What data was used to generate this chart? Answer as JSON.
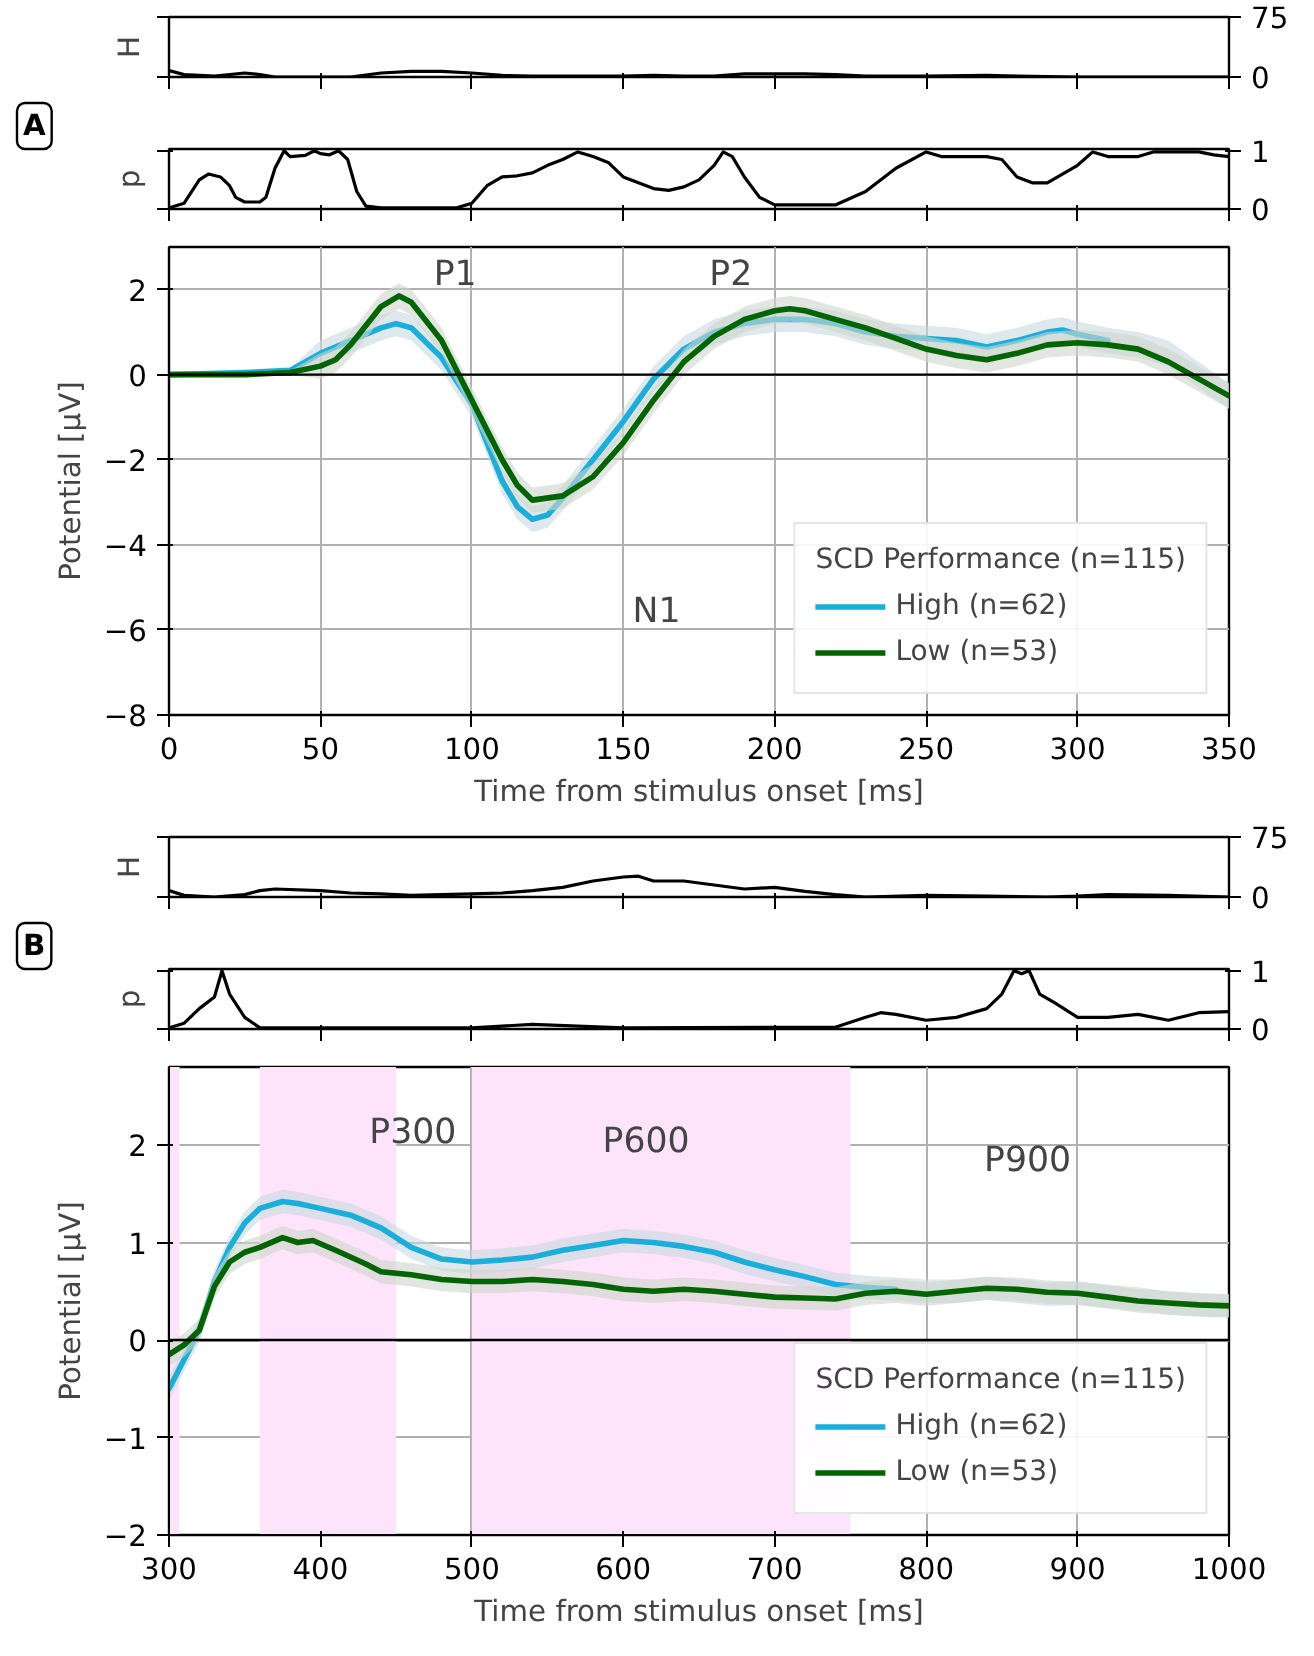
{
  "chart_data": [
    {
      "type": "line",
      "ylabel": "H",
      "xlim": [
        0,
        350
      ],
      "xticks": [
        0,
        50,
        100,
        150,
        200,
        250,
        300,
        350
      ],
      "ylim": [
        0,
        75
      ],
      "yticks": [
        0,
        75
      ],
      "tick_labels": "y",
      "grid": false,
      "series": [
        {
          "color": "#000000",
          "x": [
            0,
            5,
            15,
            25,
            30,
            35,
            60,
            70,
            80,
            90,
            100,
            110,
            120,
            150,
            160,
            170,
            180,
            190,
            200,
            210,
            220,
            230,
            250,
            270,
            280,
            300,
            350
          ],
          "values": [
            8,
            3,
            1,
            5,
            3,
            0,
            0,
            5,
            7,
            7,
            5,
            2,
            1,
            1,
            2,
            1,
            1,
            4,
            4,
            4,
            3,
            1,
            1,
            2,
            1,
            0,
            0
          ]
        }
      ]
    },
    {
      "type": "line",
      "ylabel": "p",
      "xlim": [
        0,
        350
      ],
      "xticks": [
        0,
        50,
        100,
        150,
        200,
        250,
        300,
        350
      ],
      "ylim": [
        0,
        1.03
      ],
      "yticks": [
        0,
        1
      ],
      "tick_labels": "y",
      "grid": false,
      "annotations": [
        "A"
      ],
      "series": [
        {
          "color": "#000000",
          "x": [
            0,
            5,
            10,
            13,
            17,
            20,
            22,
            25,
            30,
            32,
            35,
            38,
            40,
            45,
            48,
            50,
            53,
            56,
            59,
            62,
            65,
            70,
            95,
            100,
            105,
            110,
            115,
            120,
            125,
            130,
            135,
            140,
            145,
            150,
            160,
            165,
            170,
            175,
            180,
            183,
            186,
            190,
            195,
            200,
            220,
            230,
            240,
            250,
            255,
            270,
            275,
            280,
            285,
            290,
            300,
            305,
            310,
            320,
            325,
            340,
            345,
            350
          ],
          "values": [
            0.02,
            0.1,
            0.5,
            0.6,
            0.55,
            0.4,
            0.2,
            0.12,
            0.12,
            0.2,
            0.7,
            1.0,
            0.9,
            0.92,
            1.0,
            0.95,
            0.93,
            1.0,
            0.85,
            0.3,
            0.05,
            0.02,
            0.02,
            0.1,
            0.4,
            0.55,
            0.57,
            0.62,
            0.75,
            0.85,
            0.98,
            0.9,
            0.8,
            0.55,
            0.35,
            0.32,
            0.38,
            0.5,
            0.75,
            0.98,
            0.9,
            0.55,
            0.2,
            0.07,
            0.07,
            0.3,
            0.7,
            0.98,
            0.9,
            0.9,
            0.85,
            0.55,
            0.45,
            0.45,
            0.75,
            0.98,
            0.9,
            0.9,
            0.98,
            0.98,
            0.93,
            0.9
          ]
        }
      ]
    },
    {
      "type": "line",
      "xlabel": "Time from stimulus onset [ms]",
      "ylabel": "Potential [μV]",
      "xlim": [
        0,
        350
      ],
      "xticks": [
        0,
        50,
        100,
        150,
        200,
        250,
        300,
        350
      ],
      "ylim": [
        -8,
        3
      ],
      "yticks": [
        -8,
        -6,
        -4,
        -2,
        0,
        2
      ],
      "grid": true,
      "legend": "bottom right",
      "legend_title": "SCD Performance (n=115)",
      "ref_lines": [
        {
          "axis": "y",
          "value": 0,
          "color": "#000000"
        }
      ],
      "annotations": [
        "P1",
        "P2",
        "N1"
      ],
      "series": [
        {
          "name": "High (n=62)",
          "color": "#1aaedb",
          "x": [
            0,
            25,
            40,
            50,
            60,
            70,
            75,
            80,
            90,
            100,
            105,
            110,
            115,
            120,
            125,
            130,
            140,
            150,
            160,
            170,
            180,
            190,
            200,
            210,
            220,
            230,
            240,
            250,
            260,
            270,
            280,
            290,
            295,
            300,
            310,
            320,
            330,
            340,
            350
          ],
          "values": [
            0,
            0.05,
            0.1,
            0.5,
            0.8,
            1.1,
            1.2,
            1.1,
            0.4,
            -0.7,
            -1.6,
            -2.5,
            -3.1,
            -3.4,
            -3.3,
            -2.9,
            -2.0,
            -1.1,
            -0.1,
            0.6,
            1.0,
            1.2,
            1.3,
            1.3,
            1.2,
            1.0,
            0.9,
            0.85,
            0.8,
            0.65,
            0.8,
            1.0,
            1.05,
            0.95,
            0.8,
            null,
            null,
            null,
            null
          ],
          "lower": [
            -0.05,
            0,
            0.05,
            0.2,
            0.5,
            0.8,
            0.9,
            0.8,
            0.1,
            -1.0,
            -1.9,
            -2.8,
            -3.4,
            -3.7,
            -3.6,
            -3.2,
            -2.3,
            -1.4,
            -0.4,
            0.3,
            0.7,
            0.9,
            1.0,
            1.0,
            0.9,
            0.7,
            0.6,
            0.55,
            0.5,
            0.35,
            0.5,
            0.7,
            0.75,
            0.65,
            0.5,
            0.4,
            0.2,
            -0.3,
            -0.8
          ],
          "upper": [
            0.05,
            0.1,
            0.15,
            0.8,
            1.1,
            1.4,
            1.5,
            1.4,
            0.7,
            -0.4,
            -1.3,
            -2.2,
            -2.8,
            -3.1,
            -3.0,
            -2.6,
            -1.7,
            -0.8,
            0.2,
            0.9,
            1.3,
            1.5,
            1.6,
            1.6,
            1.5,
            1.3,
            1.2,
            1.15,
            1.1,
            0.95,
            1.1,
            1.3,
            1.35,
            1.25,
            1.1,
            1.0,
            0.8,
            0.3,
            -0.2
          ]
        },
        {
          "name": "Low (n=53)",
          "color": "#006400",
          "x": [
            0,
            25,
            40,
            50,
            55,
            60,
            70,
            76,
            80,
            90,
            100,
            110,
            115,
            120,
            130,
            140,
            150,
            160,
            170,
            180,
            190,
            200,
            205,
            210,
            220,
            230,
            240,
            250,
            260,
            270,
            280,
            290,
            300,
            310,
            320,
            330,
            340,
            350
          ],
          "values": [
            0,
            0,
            0.05,
            0.2,
            0.35,
            0.7,
            1.6,
            1.85,
            1.7,
            0.8,
            -0.6,
            -2.0,
            -2.6,
            -2.95,
            -2.85,
            -2.4,
            -1.6,
            -0.6,
            0.3,
            0.9,
            1.3,
            1.5,
            1.55,
            1.5,
            1.3,
            1.1,
            0.85,
            0.6,
            0.45,
            0.35,
            0.5,
            0.7,
            0.75,
            0.7,
            0.6,
            0.3,
            -0.1,
            -0.5
          ],
          "lower": [
            -0.05,
            -0.05,
            0,
            -0.1,
            0.05,
            0.4,
            1.3,
            1.55,
            1.4,
            0.5,
            -0.9,
            -2.3,
            -2.9,
            -3.25,
            -3.15,
            -2.7,
            -1.9,
            -0.9,
            0,
            0.6,
            1.0,
            1.2,
            1.25,
            1.2,
            1.0,
            0.8,
            0.55,
            0.3,
            0.15,
            0.05,
            0.2,
            0.4,
            0.45,
            0.4,
            0.3,
            0,
            -0.4,
            -0.8
          ],
          "upper": [
            0.05,
            0.05,
            0.1,
            0.5,
            0.65,
            1.0,
            1.9,
            2.15,
            2.0,
            1.1,
            -0.3,
            -1.7,
            -2.3,
            -2.65,
            -2.55,
            -2.1,
            -1.3,
            -0.3,
            0.6,
            1.2,
            1.6,
            1.8,
            1.85,
            1.8,
            1.6,
            1.4,
            1.15,
            0.9,
            0.75,
            0.65,
            0.8,
            1.0,
            1.05,
            1.0,
            0.9,
            0.6,
            0.2,
            -0.2
          ]
        }
      ]
    },
    {
      "type": "line",
      "ylabel": "H",
      "xlim": [
        300,
        1000
      ],
      "xticks": [
        300,
        400,
        500,
        600,
        700,
        800,
        900,
        1000
      ],
      "ylim": [
        0,
        75
      ],
      "yticks": [
        0,
        75
      ],
      "tick_labels": "y",
      "grid": false,
      "series": [
        {
          "color": "#000000",
          "x": [
            300,
            310,
            330,
            350,
            360,
            370,
            400,
            420,
            440,
            460,
            480,
            500,
            520,
            540,
            560,
            580,
            600,
            610,
            620,
            640,
            660,
            680,
            700,
            720,
            740,
            760,
            800,
            840,
            880,
            900,
            920,
            960,
            1000
          ],
          "values": [
            8,
            2,
            0,
            3,
            8,
            10,
            8,
            5,
            4,
            2,
            3,
            4,
            5,
            8,
            12,
            20,
            25,
            26,
            20,
            20,
            15,
            10,
            12,
            7,
            3,
            0,
            2,
            1,
            0,
            1,
            3,
            2,
            0
          ]
        }
      ]
    },
    {
      "type": "line",
      "ylabel": "p",
      "xlim": [
        300,
        1000
      ],
      "xticks": [
        300,
        400,
        500,
        600,
        700,
        800,
        900,
        1000
      ],
      "ylim": [
        0,
        1.03
      ],
      "yticks": [
        0,
        1
      ],
      "tick_labels": "y",
      "grid": false,
      "annotations": [
        "B"
      ],
      "series": [
        {
          "color": "#000000",
          "x": [
            300,
            310,
            320,
            330,
            335,
            340,
            350,
            360,
            500,
            520,
            540,
            600,
            740,
            760,
            770,
            780,
            800,
            820,
            840,
            850,
            858,
            863,
            868,
            875,
            885,
            900,
            920,
            940,
            960,
            980,
            1000
          ],
          "values": [
            0.02,
            0.1,
            0.35,
            0.55,
            1.0,
            0.6,
            0.2,
            0.02,
            0.02,
            0.05,
            0.08,
            0.02,
            0.03,
            0.2,
            0.28,
            0.25,
            0.15,
            0.2,
            0.35,
            0.6,
            1.0,
            0.95,
            1.0,
            0.6,
            0.45,
            0.2,
            0.2,
            0.25,
            0.15,
            0.28,
            0.3
          ]
        }
      ]
    },
    {
      "type": "line",
      "xlabel": "Time from stimulus onset [ms]",
      "ylabel": "Potential [μV]",
      "xlim": [
        300,
        1000
      ],
      "xticks": [
        300,
        400,
        500,
        600,
        700,
        800,
        900,
        1000
      ],
      "ylim": [
        -2,
        2.8
      ],
      "yticks": [
        -2,
        -1,
        0,
        1,
        2
      ],
      "grid": true,
      "legend": "bottom right",
      "legend_title": "SCD Performance (n=115)",
      "ref_lines": [
        {
          "axis": "y",
          "value": 0,
          "color": "#000000"
        }
      ],
      "bands": [
        {
          "axis": "x",
          "from": 300,
          "to": 307,
          "color": "#fde4fa"
        },
        {
          "axis": "x",
          "from": 360,
          "to": 450,
          "color": "#fde4fa"
        },
        {
          "axis": "x",
          "from": 500,
          "to": 750,
          "color": "#fde4fa"
        }
      ],
      "annotations": [
        "P300",
        "P600",
        "P900"
      ],
      "series": [
        {
          "name": "High (n=62)",
          "color": "#1aaedb",
          "x": [
            300,
            310,
            320,
            330,
            340,
            350,
            360,
            375,
            385,
            400,
            420,
            440,
            460,
            480,
            500,
            520,
            540,
            560,
            580,
            600,
            620,
            640,
            660,
            680,
            700,
            720,
            740,
            760,
            780,
            800,
            820,
            840,
            860,
            880,
            900,
            920,
            940,
            960,
            980,
            1000
          ],
          "values": [
            -0.5,
            -0.2,
            0.1,
            0.6,
            0.95,
            1.2,
            1.35,
            1.42,
            1.4,
            1.35,
            1.28,
            1.15,
            0.95,
            0.83,
            0.8,
            0.82,
            0.85,
            0.92,
            0.97,
            1.02,
            1.0,
            0.96,
            0.9,
            0.8,
            0.72,
            0.65,
            0.57,
            0.54,
            0.52,
            null,
            null,
            null,
            null,
            null,
            null,
            null,
            null,
            null,
            null,
            null
          ],
          "lower": [
            -0.62,
            -0.32,
            -0.02,
            0.48,
            0.83,
            1.08,
            1.23,
            1.3,
            1.28,
            1.23,
            1.16,
            1.03,
            0.83,
            0.71,
            0.68,
            0.7,
            0.73,
            0.8,
            0.85,
            0.9,
            0.88,
            0.84,
            0.78,
            0.68,
            0.6,
            0.53,
            0.45,
            0.42,
            0.4,
            0.38,
            0.38,
            0.41,
            0.38,
            0.35,
            0.36,
            0.33,
            0.3,
            0.26,
            0.24,
            0.23
          ],
          "upper": [
            -0.38,
            -0.08,
            0.22,
            0.72,
            1.07,
            1.32,
            1.47,
            1.54,
            1.52,
            1.47,
            1.4,
            1.27,
            1.07,
            0.95,
            0.92,
            0.94,
            0.97,
            1.04,
            1.09,
            1.14,
            1.12,
            1.08,
            1.02,
            0.92,
            0.84,
            0.77,
            0.69,
            0.66,
            0.64,
            0.62,
            0.62,
            0.65,
            0.62,
            0.59,
            0.6,
            0.57,
            0.54,
            0.5,
            0.48,
            0.47
          ]
        },
        {
          "name": "Low (n=53)",
          "color": "#006400",
          "x": [
            300,
            310,
            320,
            330,
            340,
            350,
            360,
            375,
            385,
            395,
            410,
            430,
            440,
            460,
            480,
            500,
            520,
            540,
            560,
            580,
            600,
            620,
            640,
            660,
            680,
            700,
            720,
            740,
            760,
            780,
            800,
            820,
            840,
            860,
            880,
            900,
            920,
            940,
            960,
            980,
            1000
          ],
          "values": [
            -0.15,
            -0.05,
            0.1,
            0.55,
            0.8,
            0.9,
            0.95,
            1.05,
            1.0,
            1.02,
            0.92,
            0.78,
            0.7,
            0.67,
            0.62,
            0.6,
            0.6,
            0.62,
            0.6,
            0.57,
            0.52,
            0.5,
            0.52,
            0.5,
            0.47,
            0.44,
            0.43,
            0.42,
            0.48,
            0.5,
            0.47,
            0.5,
            0.53,
            0.52,
            0.49,
            0.48,
            0.44,
            0.4,
            0.38,
            0.36,
            0.35
          ],
          "lower": [
            -0.27,
            -0.17,
            -0.02,
            0.43,
            0.68,
            0.78,
            0.83,
            0.93,
            0.88,
            0.9,
            0.8,
            0.66,
            0.58,
            0.55,
            0.5,
            0.48,
            0.48,
            0.5,
            0.48,
            0.45,
            0.4,
            0.38,
            0.4,
            0.38,
            0.35,
            0.32,
            0.31,
            0.3,
            0.36,
            0.38,
            0.35,
            0.38,
            0.41,
            0.4,
            0.37,
            0.36,
            0.32,
            0.28,
            0.26,
            0.24,
            0.23
          ],
          "upper": [
            -0.03,
            0.07,
            0.22,
            0.67,
            0.92,
            1.02,
            1.07,
            1.17,
            1.12,
            1.14,
            1.04,
            0.9,
            0.82,
            0.79,
            0.74,
            0.72,
            0.72,
            0.74,
            0.72,
            0.69,
            0.64,
            0.62,
            0.64,
            0.62,
            0.59,
            0.56,
            0.55,
            0.54,
            0.6,
            0.62,
            0.59,
            0.62,
            0.65,
            0.64,
            0.61,
            0.6,
            0.56,
            0.52,
            0.5,
            0.48,
            0.47
          ]
        }
      ]
    }
  ]
}
